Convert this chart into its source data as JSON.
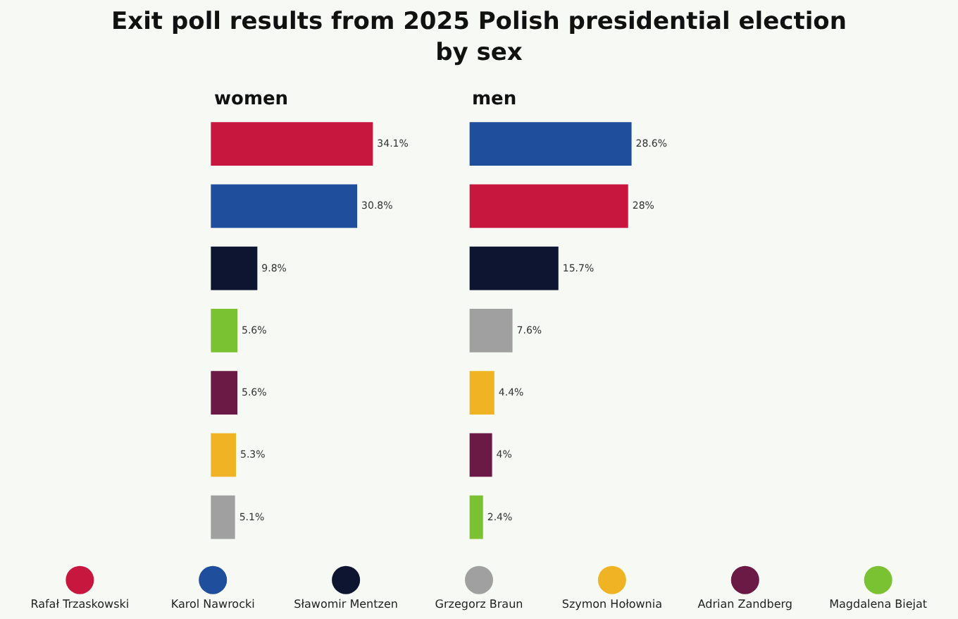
{
  "chart_data": [
    {
      "type": "bar",
      "orientation": "horizontal",
      "title": "Exit poll results from 2025 Polish presidential election by sex",
      "subtitle": "women",
      "categories": [
        null,
        null,
        null,
        null,
        null,
        null,
        null
      ],
      "tick_labels": false,
      "grid": false,
      "values": [
        34.1,
        30.8,
        9.8,
        5.6,
        5.6,
        5.3,
        5.1
      ],
      "colors": [
        "#c8173f",
        "#1f4e9c",
        "#0d1530",
        "#7ac231",
        "#6b1a45",
        "#f0b323",
        "#a0a0a0"
      ],
      "value_labels": [
        "34.1%",
        "30.8%",
        "9.8%",
        "5.6%",
        "5.6%",
        "5.3%",
        "5.1%"
      ]
    },
    {
      "type": "bar",
      "orientation": "horizontal",
      "subtitle": "men",
      "categories": [
        null,
        null,
        null,
        null,
        null,
        null,
        null
      ],
      "tick_labels": false,
      "grid": false,
      "values": [
        28.6,
        28,
        15.7,
        7.6,
        4.4,
        4,
        2.4
      ],
      "colors": [
        "#1f4e9c",
        "#c8173f",
        "#0d1530",
        "#a0a0a0",
        "#f0b323",
        "#6b1a45",
        "#7ac231"
      ],
      "value_labels": [
        "28.6%",
        "28%",
        "15.7%",
        "7.6%",
        "4.4%",
        "4%",
        "2.4%"
      ]
    },
    {
      "type": "other",
      "categories": [
        "Rafał Trzaskowski",
        "Karol Nawrocki",
        "Sławomir Mentzen",
        "Grzegorz Braun",
        "Szymon Hołownia",
        "Adrian Zandberg",
        "Magdalena Biejat"
      ],
      "colors": [
        "#c8173f",
        "#1f4e9c",
        "#0d1530",
        "#a0a0a0",
        "#f0b323",
        "#6b1a45",
        "#7ac231"
      ]
    }
  ]
}
